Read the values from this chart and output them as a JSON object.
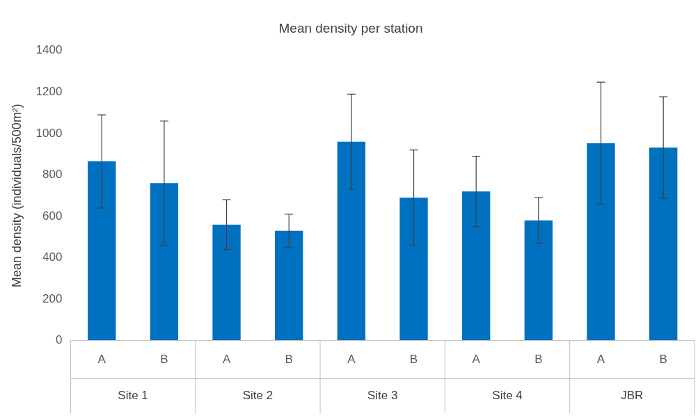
{
  "chart_data": {
    "type": "bar",
    "title": "Mean density per station",
    "ylabel": "Mean density (individuals/500m²)",
    "categories": [
      "A",
      "B",
      "A",
      "B",
      "A",
      "B",
      "A",
      "B",
      "A",
      "B"
    ],
    "values": [
      865,
      760,
      560,
      530,
      960,
      690,
      720,
      580,
      953,
      932
    ],
    "errors": [
      225,
      300,
      120,
      80,
      230,
      230,
      170,
      110,
      295,
      245
    ],
    "color": "#0070c0",
    "ylim": [
      0,
      1400
    ],
    "yticks": [
      0,
      200,
      400,
      600,
      800,
      1000,
      1200,
      1400
    ],
    "grid": false,
    "legend": false,
    "annotations": [
      "Site 1",
      "Site 2",
      "Site 3",
      "Site 4",
      "JBR"
    ]
  }
}
